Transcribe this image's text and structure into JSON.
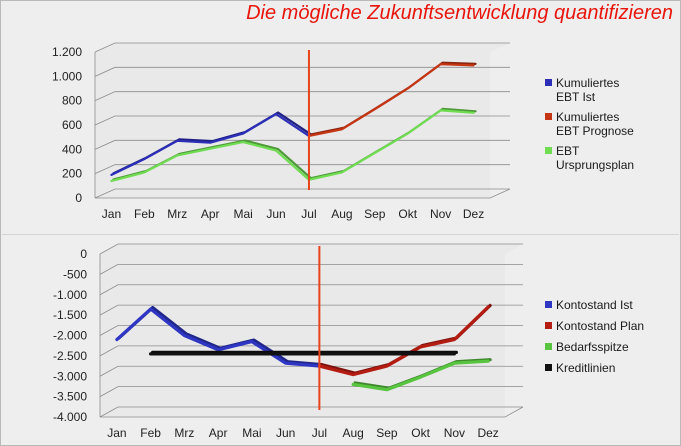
{
  "title": "Die mögliche Zukunftsentwicklung quantifizieren",
  "chart_data": [
    {
      "type": "line",
      "id": "top",
      "categories": [
        "Jan",
        "Feb",
        "Mrz",
        "Apr",
        "Mai",
        "Jun",
        "Jul",
        "Aug",
        "Sep",
        "Okt",
        "Nov",
        "Dez"
      ],
      "ylim": [
        0,
        1200
      ],
      "yticks": [
        0,
        200,
        400,
        600,
        800,
        1000,
        1200
      ],
      "ytick_labels": [
        "0",
        "200",
        "400",
        "600",
        "800",
        "1.000",
        "1.200"
      ],
      "grid": true,
      "legend_position": "right",
      "marker_line": {
        "at_category": "Jul",
        "color": "#e8431a"
      },
      "series": [
        {
          "name": "Kumuliertes EBT Ist",
          "name_lines": [
            "Kumuliertes",
            "EBT Ist"
          ],
          "color": "#2c2eb8",
          "values": [
            190,
            320,
            470,
            455,
            530,
            690,
            510,
            null,
            null,
            null,
            null,
            null
          ]
        },
        {
          "name": "Kumuliertes EBT Prognose",
          "name_lines": [
            "Kumuliertes",
            "EBT Prognose"
          ],
          "color": "#c53514",
          "values": [
            null,
            null,
            null,
            null,
            null,
            null,
            510,
            565,
            730,
            900,
            1100,
            1090
          ]
        },
        {
          "name": "EBT Ursprungsplan",
          "name_lines": [
            "EBT",
            "Ursprungsplan"
          ],
          "color": "#6fdc52",
          "values": [
            140,
            210,
            350,
            405,
            460,
            390,
            150,
            210,
            370,
            530,
            720,
            700
          ]
        }
      ]
    },
    {
      "type": "line",
      "id": "bottom",
      "categories": [
        "Jan",
        "Feb",
        "Mrz",
        "Apr",
        "Mai",
        "Jun",
        "Jul",
        "Aug",
        "Sep",
        "Okt",
        "Nov",
        "Dez"
      ],
      "ylim": [
        -4000,
        0
      ],
      "yticks": [
        0,
        -500,
        -1000,
        -1500,
        -2000,
        -2500,
        -3000,
        -3500,
        -4000
      ],
      "ytick_labels": [
        "0",
        "-500",
        "-1.000",
        "-1.500",
        "-2.000",
        "-2.500",
        "-3.000",
        "-3.500",
        "-4.000"
      ],
      "grid": true,
      "legend_position": "right",
      "marker_line": {
        "at_category": "Jul",
        "color": "#e8431a"
      },
      "series": [
        {
          "name": "Kontostand Ist",
          "name_lines": [
            "Kontostand Ist"
          ],
          "color": "#2f36c4",
          "values": [
            -2100,
            -1350,
            -2000,
            -2350,
            -2150,
            -2680,
            -2750,
            null,
            null,
            null,
            null,
            null
          ]
        },
        {
          "name": "Kontostand Plan",
          "name_lines": [
            "Kontostand Plan"
          ],
          "color": "#b41c12",
          "values": [
            null,
            null,
            null,
            null,
            null,
            null,
            -2750,
            -2960,
            -2750,
            -2280,
            -2100,
            -1300
          ]
        },
        {
          "name": "Bedarfsspitze",
          "name_lines": [
            "Bedarfsspitze"
          ],
          "color": "#59c440",
          "values": [
            null,
            null,
            null,
            null,
            null,
            null,
            null,
            -3200,
            -3330,
            -3020,
            -2680,
            -2630
          ]
        },
        {
          "name": "Kreditlinien",
          "name_lines": [
            "Kreditlinien"
          ],
          "color": "#111111",
          "values": [
            null,
            -2450,
            -2450,
            -2450,
            -2450,
            -2450,
            -2450,
            -2450,
            -2450,
            -2450,
            -2450,
            null
          ]
        }
      ]
    }
  ]
}
